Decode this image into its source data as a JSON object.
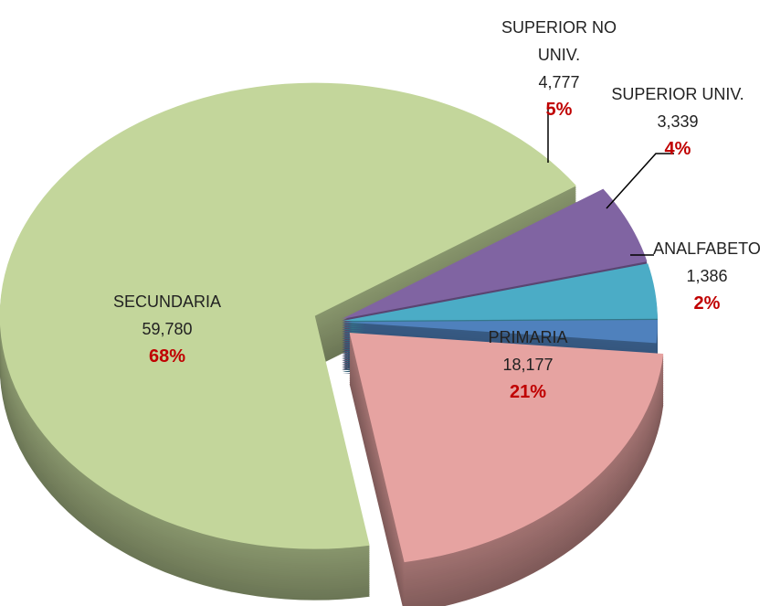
{
  "chart_data": {
    "type": "pie",
    "categories": [
      "SECUNDARIA",
      "SUPERIOR NO UNIV.",
      "SUPERIOR UNIV.",
      "ANALFABETO",
      "PRIMARIA"
    ],
    "values": [
      59780,
      4777,
      3339,
      1386,
      18177
    ],
    "value_labels": [
      "59,780",
      "4,777",
      "3,339",
      "1,386",
      "18,177"
    ],
    "percents": [
      68,
      5,
      4,
      2,
      21
    ],
    "percent_labels": [
      "68%",
      "5%",
      "4%",
      "2%",
      "21%"
    ],
    "colors": [
      "#c3d69b",
      "#8064a2",
      "#4bacc6",
      "#4f81bd",
      "#e6a3a1"
    ]
  }
}
